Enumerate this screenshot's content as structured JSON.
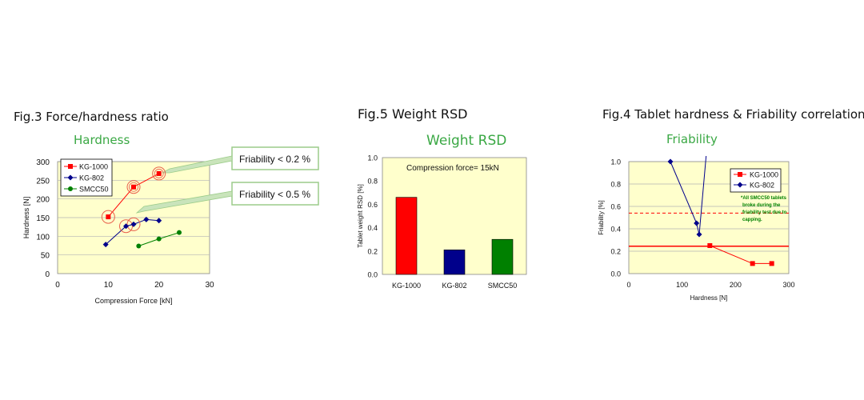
{
  "figures": {
    "fig3": {
      "fig_title": "Fig.3 Force/hardness ratio",
      "chart_title": "Hardness",
      "ylabel": "Hardness [N]",
      "xlabel": "Compression Force [kN]",
      "callouts": [
        "Friability < 0.2 %",
        "Friability < 0.5 %"
      ]
    },
    "fig5": {
      "fig_title": "Fig.5 Weight RSD",
      "chart_title": "Weight RSD",
      "ylabel": "Tablet weight RSD [%]",
      "annotation": "Compression force= 15kN"
    },
    "fig4": {
      "fig_title": "Fig.4 Tablet hardness & Friability correlation",
      "chart_title": "Friability",
      "ylabel": "Friability [%]",
      "xlabel": "Hardness [N]",
      "note": [
        "*All SMCC50 tablets",
        "broke during the",
        "friability test due to",
        "capping."
      ]
    }
  },
  "colors": {
    "plot_bg": "#ffffcc",
    "red": "#ff0000",
    "blue": "#00008b",
    "green": "#008000",
    "title_green": "#3aa844",
    "callout_border": "#9ccc8a"
  },
  "chart_data": [
    {
      "type": "scatter",
      "title": "Hardness",
      "xlabel": "Compression Force [kN]",
      "ylabel": "Hardness [N]",
      "xlim": [
        0,
        30
      ],
      "ylim": [
        0,
        300
      ],
      "xticks": [
        0,
        10,
        20,
        30
      ],
      "yticks": [
        0,
        50,
        100,
        150,
        200,
        250,
        300
      ],
      "grid": true,
      "legend": "top-left",
      "series": [
        {
          "name": "KG-1000",
          "color": "#ff0000",
          "marker": "square",
          "x": [
            10,
            15,
            20
          ],
          "y": [
            152,
            232,
            268
          ]
        },
        {
          "name": "KG-802",
          "color": "#00008b",
          "marker": "diamond",
          "x": [
            9.5,
            13.5,
            15,
            17.5,
            20
          ],
          "y": [
            78,
            127,
            132,
            145,
            142
          ]
        },
        {
          "name": "SMCC50",
          "color": "#008000",
          "marker": "circle",
          "x": [
            16,
            20,
            24
          ],
          "y": [
            74,
            93,
            110
          ]
        }
      ],
      "annotations": [
        "Friability < 0.2 %",
        "Friability < 0.5 %"
      ]
    },
    {
      "type": "bar",
      "title": "Weight RSD",
      "ylabel": "Tablet weight RSD [%]",
      "categories": [
        "KG-1000",
        "KG-802",
        "SMCC50"
      ],
      "values": [
        0.66,
        0.21,
        0.3
      ],
      "colors": [
        "#ff0000",
        "#00008b",
        "#008000"
      ],
      "ylim": [
        0,
        1.0
      ],
      "yticks": [
        "0.0",
        "0.2",
        "0.4",
        "0.6",
        "0.8",
        "1.0"
      ],
      "grid": false,
      "annotations": [
        "Compression force= 15kN"
      ]
    },
    {
      "type": "line",
      "title": "Friability",
      "xlabel": "Hardness [N]",
      "ylabel": "Friability [%]",
      "xlim": [
        0,
        300
      ],
      "ylim": [
        0,
        1.0
      ],
      "xticks": [
        0,
        100,
        200,
        300
      ],
      "yticks": [
        "0.0",
        "0.2",
        "0.4",
        "0.6",
        "0.8",
        "1.0"
      ],
      "grid": true,
      "legend": "top-right",
      "series": [
        {
          "name": "KG-1000",
          "color": "#ff0000",
          "marker": "square",
          "x": [
            152,
            232,
            268
          ],
          "y": [
            0.25,
            0.09,
            0.09
          ]
        },
        {
          "name": "KG-802",
          "color": "#00008b",
          "marker": "diamond",
          "x": [
            78,
            127,
            132,
            145
          ],
          "y": [
            1.0,
            0.45,
            0.35,
            1.05
          ]
        }
      ],
      "reference_lines": [
        {
          "style": "solid",
          "color": "#ff0000",
          "y": 0.245
        },
        {
          "style": "dashed",
          "color": "#ff0000",
          "y": 0.54
        }
      ],
      "annotations": [
        "*All SMCC50 tablets broke during the friability test due to capping."
      ]
    }
  ]
}
